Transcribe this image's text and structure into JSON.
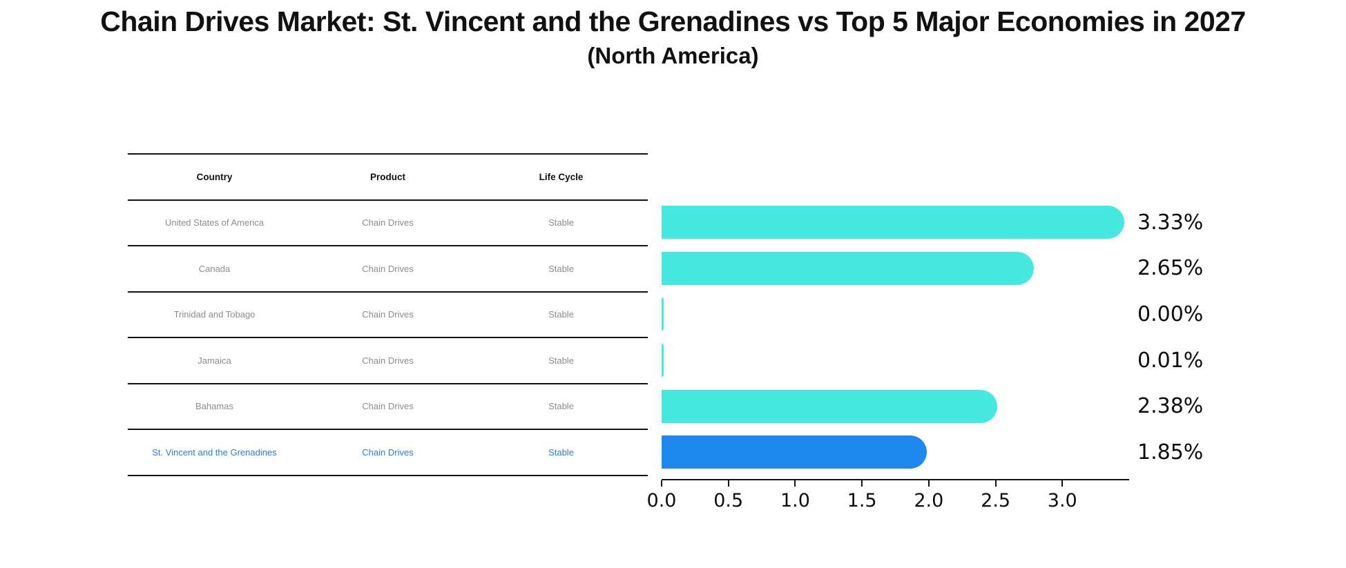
{
  "title": "Chain Drives Market: St. Vincent and the Grenadines vs Top 5 Major Economies in 2027",
  "subtitle": "(North America)",
  "table": {
    "headers": [
      "Country",
      "Product",
      "Life Cycle"
    ],
    "rows": [
      {
        "country": "United States of America",
        "product": "Chain Drives",
        "life_cycle": "Stable",
        "highlight": false
      },
      {
        "country": "Canada",
        "product": "Chain Drives",
        "life_cycle": "Stable",
        "highlight": false
      },
      {
        "country": "Trinidad and Tobago",
        "product": "Chain Drives",
        "life_cycle": "Stable",
        "highlight": false
      },
      {
        "country": "Jamaica",
        "product": "Chain Drives",
        "life_cycle": "Stable",
        "highlight": false
      },
      {
        "country": "Bahamas",
        "product": "Chain Drives",
        "life_cycle": "Stable",
        "highlight": false
      },
      {
        "country": "St. Vincent and the Grenadines",
        "product": "Chain Drives",
        "life_cycle": "Stable",
        "highlight": true
      }
    ]
  },
  "chart_data": {
    "type": "bar",
    "orientation": "horizontal",
    "title": "Chain Drives Market: St. Vincent and the Grenadines vs Top 5 Major Economies in 2027",
    "subtitle": "(North America)",
    "categories": [
      "United States of America",
      "Canada",
      "Trinidad and Tobago",
      "Jamaica",
      "Bahamas",
      "St. Vincent and the Grenadines"
    ],
    "values": [
      3.33,
      2.65,
      0.0,
      0.01,
      2.38,
      1.85
    ],
    "value_labels": [
      "3.33%",
      "2.65%",
      "0.00%",
      "0.01%",
      "2.38%",
      "1.85%"
    ],
    "x_ticks": [
      "0.0",
      "0.5",
      "1.0",
      "1.5",
      "2.0",
      "2.5",
      "3.0"
    ],
    "xlim": [
      0,
      3.5
    ],
    "grid": false,
    "legend": "none",
    "highlight_index": 5,
    "bar_color": "#46E8E0",
    "highlight_bar_color": "#1E88F0",
    "highlight_text_color": "#2E7CC9"
  },
  "colors": {
    "ink": "#111111",
    "row_text": "#8c8c8c"
  }
}
